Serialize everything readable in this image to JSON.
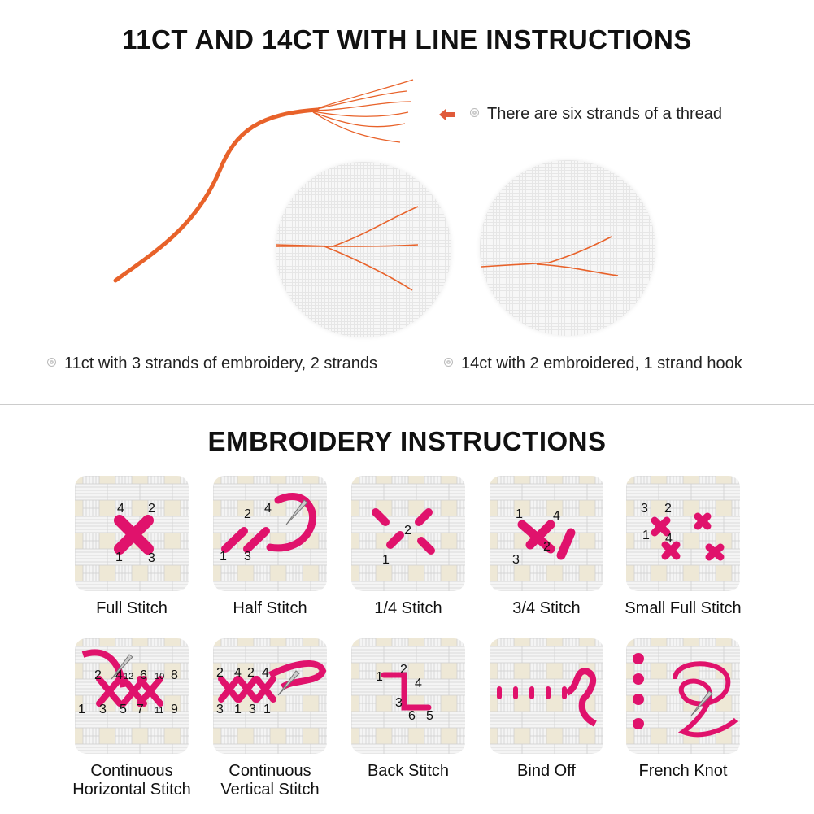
{
  "section1": {
    "title": "11CT AND 14CT WITH LINE INSTRUCTIONS",
    "thread_note": "There are six strands of a thread",
    "caption_11ct": "11ct with 3 strands of embroidery, 2 strands",
    "caption_14ct": "14ct with 2 embroidered, 1 strand hook",
    "thread_color": "#e8622a",
    "arrow_color": "#e05a3a"
  },
  "section2": {
    "title": "EMBROIDERY INSTRUCTIONS",
    "stitch_color": "#e0126c",
    "tiles": [
      {
        "label": "Full Stitch",
        "digits": [
          "4",
          "2",
          "1",
          "3"
        ]
      },
      {
        "label": "Half Stitch",
        "digits": [
          "2",
          "4",
          "1",
          "3"
        ]
      },
      {
        "label": "1/4 Stitch",
        "digits": [
          "2",
          "1"
        ]
      },
      {
        "label": "3/4 Stitch",
        "digits": [
          "1",
          "4",
          "2",
          "3"
        ]
      },
      {
        "label": "Small Full Stitch",
        "digits": [
          "3",
          "2",
          "1",
          "4"
        ]
      },
      {
        "label": "Continuous",
        "label2": "Horizontal Stitch",
        "digits": [
          "2",
          "4",
          "12",
          "6",
          "10",
          "8",
          "1",
          "3",
          "5",
          "7",
          "11",
          "9"
        ]
      },
      {
        "label": "Continuous",
        "label2": "Vertical Stitch",
        "digits": [
          "2",
          "4",
          "2",
          "4",
          "3",
          "1",
          "3",
          "1"
        ]
      },
      {
        "label": "Back Stitch",
        "digits": [
          "1",
          "2",
          "4",
          "3",
          "6",
          "5"
        ]
      },
      {
        "label": "Bind Off",
        "digits": []
      },
      {
        "label": "French Knot",
        "digits": []
      }
    ]
  }
}
